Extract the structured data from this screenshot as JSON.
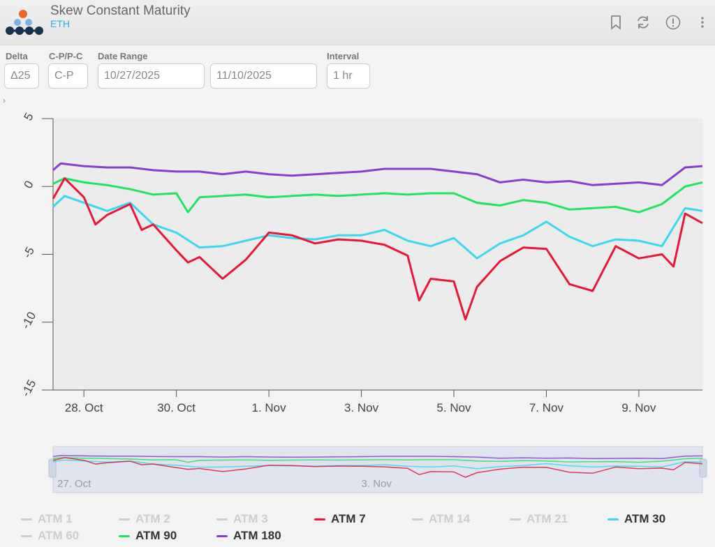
{
  "header": {
    "title": "Skew Constant Maturity",
    "subtitle": "ETH",
    "icons": [
      "bookmark-icon",
      "refresh-icon",
      "info-icon",
      "more-vert-icon"
    ]
  },
  "controls": {
    "delta": {
      "label": "Delta",
      "value": "Δ25"
    },
    "cp": {
      "label": "C-P/P-C",
      "value": "C-P"
    },
    "date_range": {
      "label": "Date Range",
      "start": "10/27/2025",
      "end": "11/10/2025"
    },
    "interval": {
      "label": "Interval",
      "value": "1 hr"
    }
  },
  "colors": {
    "atm7": "#e8173a",
    "atm30": "#3ad7f0",
    "atm90": "#22e360",
    "atm180": "#8a3ccf",
    "inactive": "#cdcdcd"
  },
  "chart_data": {
    "type": "line",
    "ylim": [
      -15,
      5
    ],
    "yticks": [
      "5",
      "0",
      "-5",
      "-10",
      "-15"
    ],
    "xticks": [
      "28. Oct",
      "30. Oct",
      "1. Nov",
      "3. Nov",
      "5. Nov",
      "7. Nov",
      "9. Nov"
    ],
    "navigator_ticks": [
      "27. Oct",
      "3. Nov"
    ],
    "x_range": [
      "2025-10-27 08:00",
      "2025-11-10 09:00"
    ],
    "series": [
      {
        "name": "ATM 180",
        "key": "atm180",
        "points": [
          [
            "2025-10-27 08:00",
            1.2
          ],
          [
            "2025-10-27 12:00",
            1.7
          ],
          [
            "2025-10-28 00:00",
            1.5
          ],
          [
            "2025-10-28 12:00",
            1.4
          ],
          [
            "2025-10-29 00:00",
            1.4
          ],
          [
            "2025-10-29 12:00",
            1.2
          ],
          [
            "2025-10-30 00:00",
            1.1
          ],
          [
            "2025-10-30 12:00",
            1.1
          ],
          [
            "2025-10-31 00:00",
            0.9
          ],
          [
            "2025-10-31 12:00",
            1.1
          ],
          [
            "2025-11-01 00:00",
            0.9
          ],
          [
            "2025-11-01 12:00",
            0.8
          ],
          [
            "2025-11-02 00:00",
            0.9
          ],
          [
            "2025-11-02 12:00",
            1.0
          ],
          [
            "2025-11-03 00:00",
            1.1
          ],
          [
            "2025-11-03 12:00",
            1.3
          ],
          [
            "2025-11-04 00:00",
            1.3
          ],
          [
            "2025-11-04 12:00",
            1.3
          ],
          [
            "2025-11-05 00:00",
            1.1
          ],
          [
            "2025-11-05 12:00",
            0.9
          ],
          [
            "2025-11-06 00:00",
            0.3
          ],
          [
            "2025-11-06 12:00",
            0.5
          ],
          [
            "2025-11-07 00:00",
            0.3
          ],
          [
            "2025-11-07 12:00",
            0.4
          ],
          [
            "2025-11-08 00:00",
            0.1
          ],
          [
            "2025-11-08 12:00",
            0.2
          ],
          [
            "2025-11-09 00:00",
            0.3
          ],
          [
            "2025-11-09 12:00",
            0.1
          ],
          [
            "2025-11-10 00:00",
            1.4
          ],
          [
            "2025-11-10 09:00",
            1.5
          ]
        ]
      },
      {
        "name": "ATM 90",
        "key": "atm90",
        "points": [
          [
            "2025-10-27 08:00",
            0.2
          ],
          [
            "2025-10-27 14:00",
            0.6
          ],
          [
            "2025-10-28 00:00",
            0.3
          ],
          [
            "2025-10-28 12:00",
            0.1
          ],
          [
            "2025-10-29 00:00",
            -0.2
          ],
          [
            "2025-10-29 12:00",
            -0.6
          ],
          [
            "2025-10-30 00:00",
            -0.5
          ],
          [
            "2025-10-30 06:00",
            -1.9
          ],
          [
            "2025-10-30 12:00",
            -0.8
          ],
          [
            "2025-10-31 00:00",
            -0.7
          ],
          [
            "2025-10-31 12:00",
            -0.6
          ],
          [
            "2025-11-01 00:00",
            -0.8
          ],
          [
            "2025-11-01 12:00",
            -0.7
          ],
          [
            "2025-11-02 00:00",
            -0.6
          ],
          [
            "2025-11-02 12:00",
            -0.7
          ],
          [
            "2025-11-03 00:00",
            -0.6
          ],
          [
            "2025-11-03 12:00",
            -0.5
          ],
          [
            "2025-11-04 00:00",
            -0.6
          ],
          [
            "2025-11-04 12:00",
            -0.5
          ],
          [
            "2025-11-05 00:00",
            -0.5
          ],
          [
            "2025-11-05 12:00",
            -1.2
          ],
          [
            "2025-11-06 00:00",
            -1.4
          ],
          [
            "2025-11-06 12:00",
            -1.0
          ],
          [
            "2025-11-07 00:00",
            -1.2
          ],
          [
            "2025-11-07 12:00",
            -1.7
          ],
          [
            "2025-11-08 00:00",
            -1.6
          ],
          [
            "2025-11-08 12:00",
            -1.5
          ],
          [
            "2025-11-09 00:00",
            -1.9
          ],
          [
            "2025-11-09 12:00",
            -1.3
          ],
          [
            "2025-11-10 00:00",
            0.0
          ],
          [
            "2025-11-10 09:00",
            0.3
          ]
        ]
      },
      {
        "name": "ATM 30",
        "key": "atm30",
        "points": [
          [
            "2025-10-27 08:00",
            -1.5
          ],
          [
            "2025-10-27 14:00",
            -0.7
          ],
          [
            "2025-10-28 00:00",
            -1.2
          ],
          [
            "2025-10-28 12:00",
            -1.8
          ],
          [
            "2025-10-29 00:00",
            -1.2
          ],
          [
            "2025-10-29 12:00",
            -2.8
          ],
          [
            "2025-10-30 00:00",
            -3.4
          ],
          [
            "2025-10-30 12:00",
            -4.5
          ],
          [
            "2025-10-31 00:00",
            -4.4
          ],
          [
            "2025-10-31 12:00",
            -4.0
          ],
          [
            "2025-11-01 00:00",
            -3.6
          ],
          [
            "2025-11-01 12:00",
            -3.8
          ],
          [
            "2025-11-02 00:00",
            -3.9
          ],
          [
            "2025-11-02 12:00",
            -3.6
          ],
          [
            "2025-11-03 00:00",
            -3.6
          ],
          [
            "2025-11-03 12:00",
            -3.2
          ],
          [
            "2025-11-04 00:00",
            -4.0
          ],
          [
            "2025-11-04 12:00",
            -4.4
          ],
          [
            "2025-11-05 00:00",
            -3.8
          ],
          [
            "2025-11-05 12:00",
            -5.3
          ],
          [
            "2025-11-06 00:00",
            -4.2
          ],
          [
            "2025-11-06 12:00",
            -3.6
          ],
          [
            "2025-11-07 00:00",
            -2.6
          ],
          [
            "2025-11-07 12:00",
            -3.7
          ],
          [
            "2025-11-08 00:00",
            -4.4
          ],
          [
            "2025-11-08 12:00",
            -3.9
          ],
          [
            "2025-11-09 00:00",
            -4.0
          ],
          [
            "2025-11-09 12:00",
            -4.4
          ],
          [
            "2025-11-10 00:00",
            -1.6
          ],
          [
            "2025-11-10 09:00",
            -1.8
          ]
        ]
      },
      {
        "name": "ATM 7",
        "key": "atm7",
        "points": [
          [
            "2025-10-27 08:00",
            -0.9
          ],
          [
            "2025-10-27 14:00",
            0.6
          ],
          [
            "2025-10-28 00:00",
            -0.8
          ],
          [
            "2025-10-28 06:00",
            -2.8
          ],
          [
            "2025-10-28 12:00",
            -2.1
          ],
          [
            "2025-10-29 00:00",
            -1.3
          ],
          [
            "2025-10-29 06:00",
            -3.2
          ],
          [
            "2025-10-29 12:00",
            -2.8
          ],
          [
            "2025-10-30 00:00",
            -4.7
          ],
          [
            "2025-10-30 06:00",
            -5.6
          ],
          [
            "2025-10-30 12:00",
            -5.2
          ],
          [
            "2025-10-31 00:00",
            -6.8
          ],
          [
            "2025-10-31 12:00",
            -5.4
          ],
          [
            "2025-11-01 00:00",
            -3.4
          ],
          [
            "2025-11-01 12:00",
            -3.6
          ],
          [
            "2025-11-02 00:00",
            -4.2
          ],
          [
            "2025-11-02 12:00",
            -3.9
          ],
          [
            "2025-11-03 00:00",
            -4.0
          ],
          [
            "2025-11-03 12:00",
            -4.3
          ],
          [
            "2025-11-04 00:00",
            -5.1
          ],
          [
            "2025-11-04 06:00",
            -8.4
          ],
          [
            "2025-11-04 12:00",
            -6.8
          ],
          [
            "2025-11-05 00:00",
            -7.0
          ],
          [
            "2025-11-05 06:00",
            -9.8
          ],
          [
            "2025-11-05 12:00",
            -7.4
          ],
          [
            "2025-11-06 00:00",
            -5.5
          ],
          [
            "2025-11-06 12:00",
            -4.5
          ],
          [
            "2025-11-07 00:00",
            -4.6
          ],
          [
            "2025-11-07 12:00",
            -7.2
          ],
          [
            "2025-11-08 00:00",
            -7.7
          ],
          [
            "2025-11-08 12:00",
            -4.4
          ],
          [
            "2025-11-09 00:00",
            -5.3
          ],
          [
            "2025-11-09 12:00",
            -5.0
          ],
          [
            "2025-11-09 18:00",
            -5.9
          ],
          [
            "2025-11-10 00:00",
            -2.0
          ],
          [
            "2025-11-10 09:00",
            -2.7
          ]
        ]
      }
    ]
  },
  "legend": [
    {
      "label": "ATM 1",
      "active": false,
      "color_key": "inactive"
    },
    {
      "label": "ATM 2",
      "active": false,
      "color_key": "inactive"
    },
    {
      "label": "ATM 3",
      "active": false,
      "color_key": "inactive"
    },
    {
      "label": "ATM 7",
      "active": true,
      "color_key": "atm7"
    },
    {
      "label": "ATM 14",
      "active": false,
      "color_key": "inactive"
    },
    {
      "label": "ATM 21",
      "active": false,
      "color_key": "inactive"
    },
    {
      "label": "ATM 30",
      "active": true,
      "color_key": "atm30"
    },
    {
      "label": "ATM 60",
      "active": false,
      "color_key": "inactive"
    },
    {
      "label": "ATM 90",
      "active": true,
      "color_key": "atm90"
    },
    {
      "label": "ATM 180",
      "active": true,
      "color_key": "atm180"
    }
  ]
}
